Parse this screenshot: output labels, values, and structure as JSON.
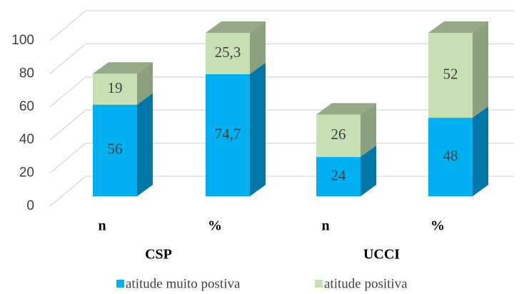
{
  "chart_data": {
    "type": "bar3d_stacked",
    "categories": [
      "n",
      "%",
      "n",
      "%"
    ],
    "groups": [
      "CSP",
      "UCCI"
    ],
    "series": [
      {
        "name": "atitude muito postiva",
        "color": "#00b0f0",
        "side_color": "#0077a8",
        "values": [
          56,
          74.7,
          24,
          48
        ],
        "value_labels": [
          "56",
          "74,7",
          "24",
          "48"
        ]
      },
      {
        "name": "atitude positiva",
        "color": "#c6e0b4",
        "side_color": "#8ba07c",
        "values": [
          19,
          25.3,
          26,
          52
        ],
        "value_labels": [
          "19",
          "25,3",
          "26",
          "52"
        ]
      }
    ],
    "ylim": [
      0,
      100
    ],
    "yticks": [
      0,
      20,
      40,
      60,
      80,
      100
    ],
    "grid": true,
    "legend": "bottom"
  }
}
